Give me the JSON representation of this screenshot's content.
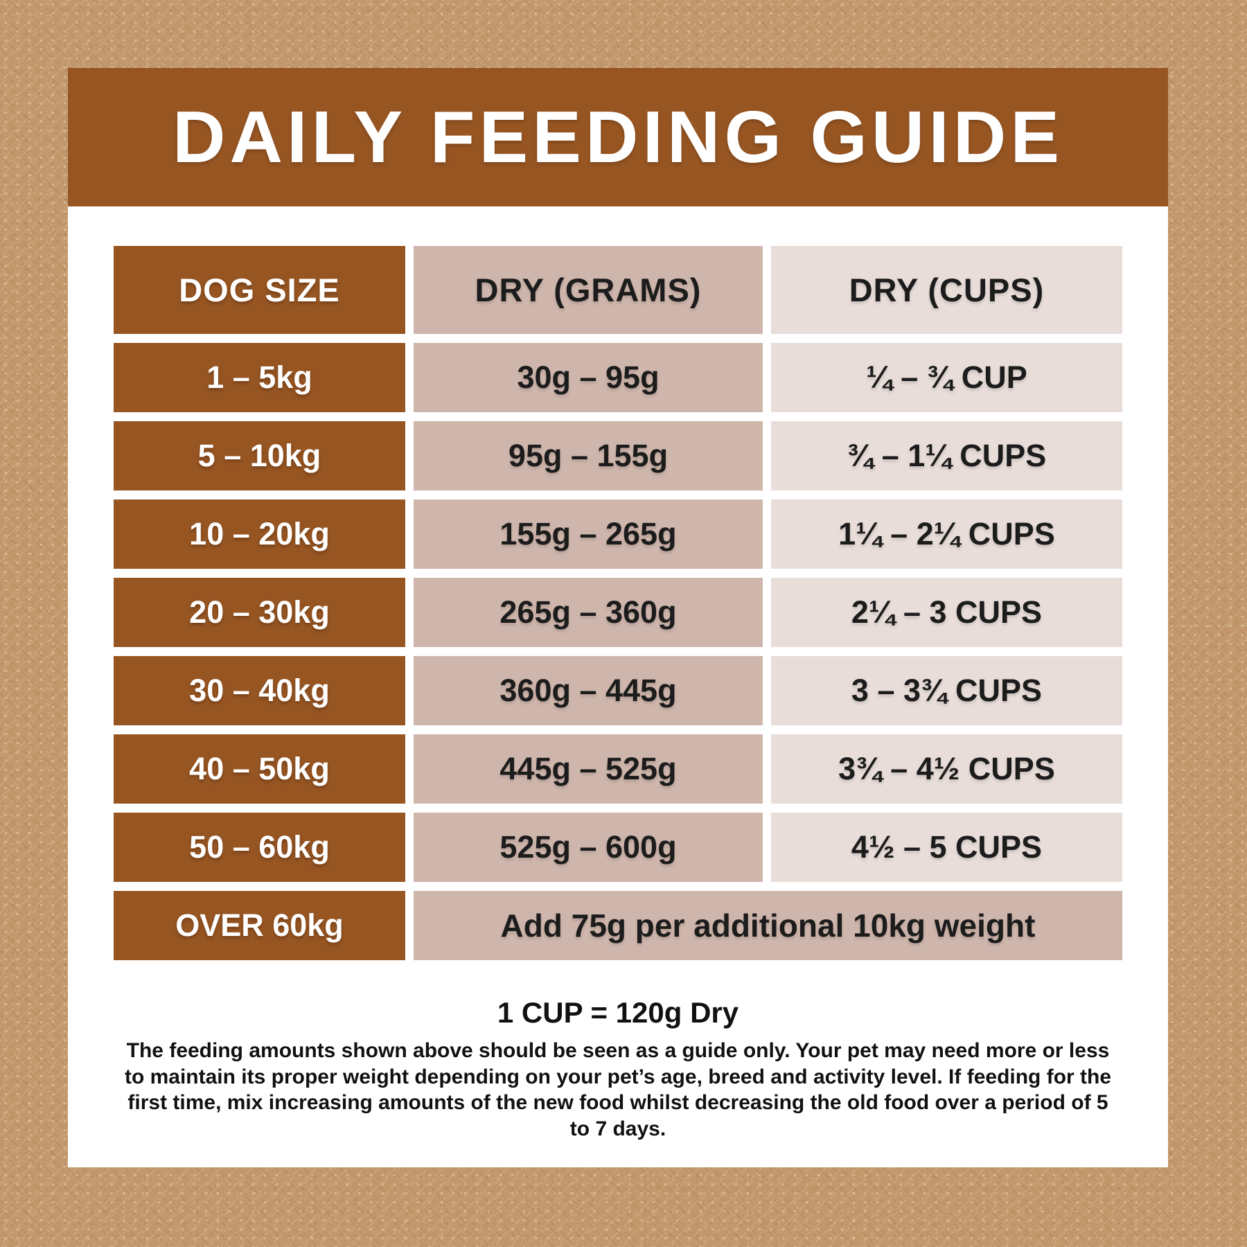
{
  "header": {
    "title": "DAILY FEEDING GUIDE"
  },
  "table": {
    "columns": [
      "DOG SIZE",
      "DRY (GRAMS)",
      "DRY (CUPS)"
    ],
    "rows": [
      {
        "size": "1 – 5kg",
        "grams": "30g – 95g",
        "cups": "¼ – ¾ CUP"
      },
      {
        "size": "5 – 10kg",
        "grams": "95g – 155g",
        "cups": "¾ – 1¼ CUPS"
      },
      {
        "size": "10 – 20kg",
        "grams": "155g – 265g",
        "cups": "1¼ – 2¼ CUPS"
      },
      {
        "size": "20 – 30kg",
        "grams": "265g – 360g",
        "cups": "2¼ – 3 CUPS"
      },
      {
        "size": "30 – 40kg",
        "grams": "360g – 445g",
        "cups": "3 – 3¾ CUPS"
      },
      {
        "size": "40 – 50kg",
        "grams": "445g – 525g",
        "cups": "3¾ – 4½ CUPS"
      },
      {
        "size": "50 – 60kg",
        "grams": "525g – 600g",
        "cups": "4½ – 5 CUPS"
      }
    ],
    "over_row": {
      "size": "OVER 60kg",
      "note": "Add 75g per additional 10kg weight"
    }
  },
  "footer": {
    "cup_note": "1 CUP = 120g Dry",
    "disclaimer": "The feeding amounts shown above should be seen as a guide only. Your pet may need more or less to maintain its proper weight depending on your pet’s age, breed and activity level. If feeding for the first time, mix increasing amounts of the new food whilst decreasing the old food over a period of 5 to 7 days."
  },
  "colors": {
    "background": "#c2986c",
    "card": "#ffffff",
    "brown": "#975522",
    "taupe": "#cfb6ac",
    "light": "#e8ddd9",
    "text_dark": "#1c1c1c",
    "text_light": "#ffffff"
  },
  "chart_data": {
    "type": "table",
    "title": "DAILY FEEDING GUIDE",
    "columns": [
      "DOG SIZE",
      "DRY (GRAMS)",
      "DRY (CUPS)"
    ],
    "rows": [
      [
        "1 – 5kg",
        "30g – 95g",
        "¼ – ¾ CUP"
      ],
      [
        "5 – 10kg",
        "95g – 155g",
        "¾ – 1¼ CUPS"
      ],
      [
        "10 – 20kg",
        "155g – 265g",
        "1¼ – 2¼ CUPS"
      ],
      [
        "20 – 30kg",
        "265g – 360g",
        "2¼ – 3 CUPS"
      ],
      [
        "30 – 40kg",
        "360g – 445g",
        "3 – 3¾ CUPS"
      ],
      [
        "40 – 50kg",
        "445g – 525g",
        "3¾ – 4½ CUPS"
      ],
      [
        "50 – 60kg",
        "525g – 600g",
        "4½ – 5 CUPS"
      ],
      [
        "OVER 60kg",
        "Add 75g per additional 10kg weight",
        ""
      ]
    ],
    "notes": [
      "1 CUP = 120g Dry"
    ]
  }
}
